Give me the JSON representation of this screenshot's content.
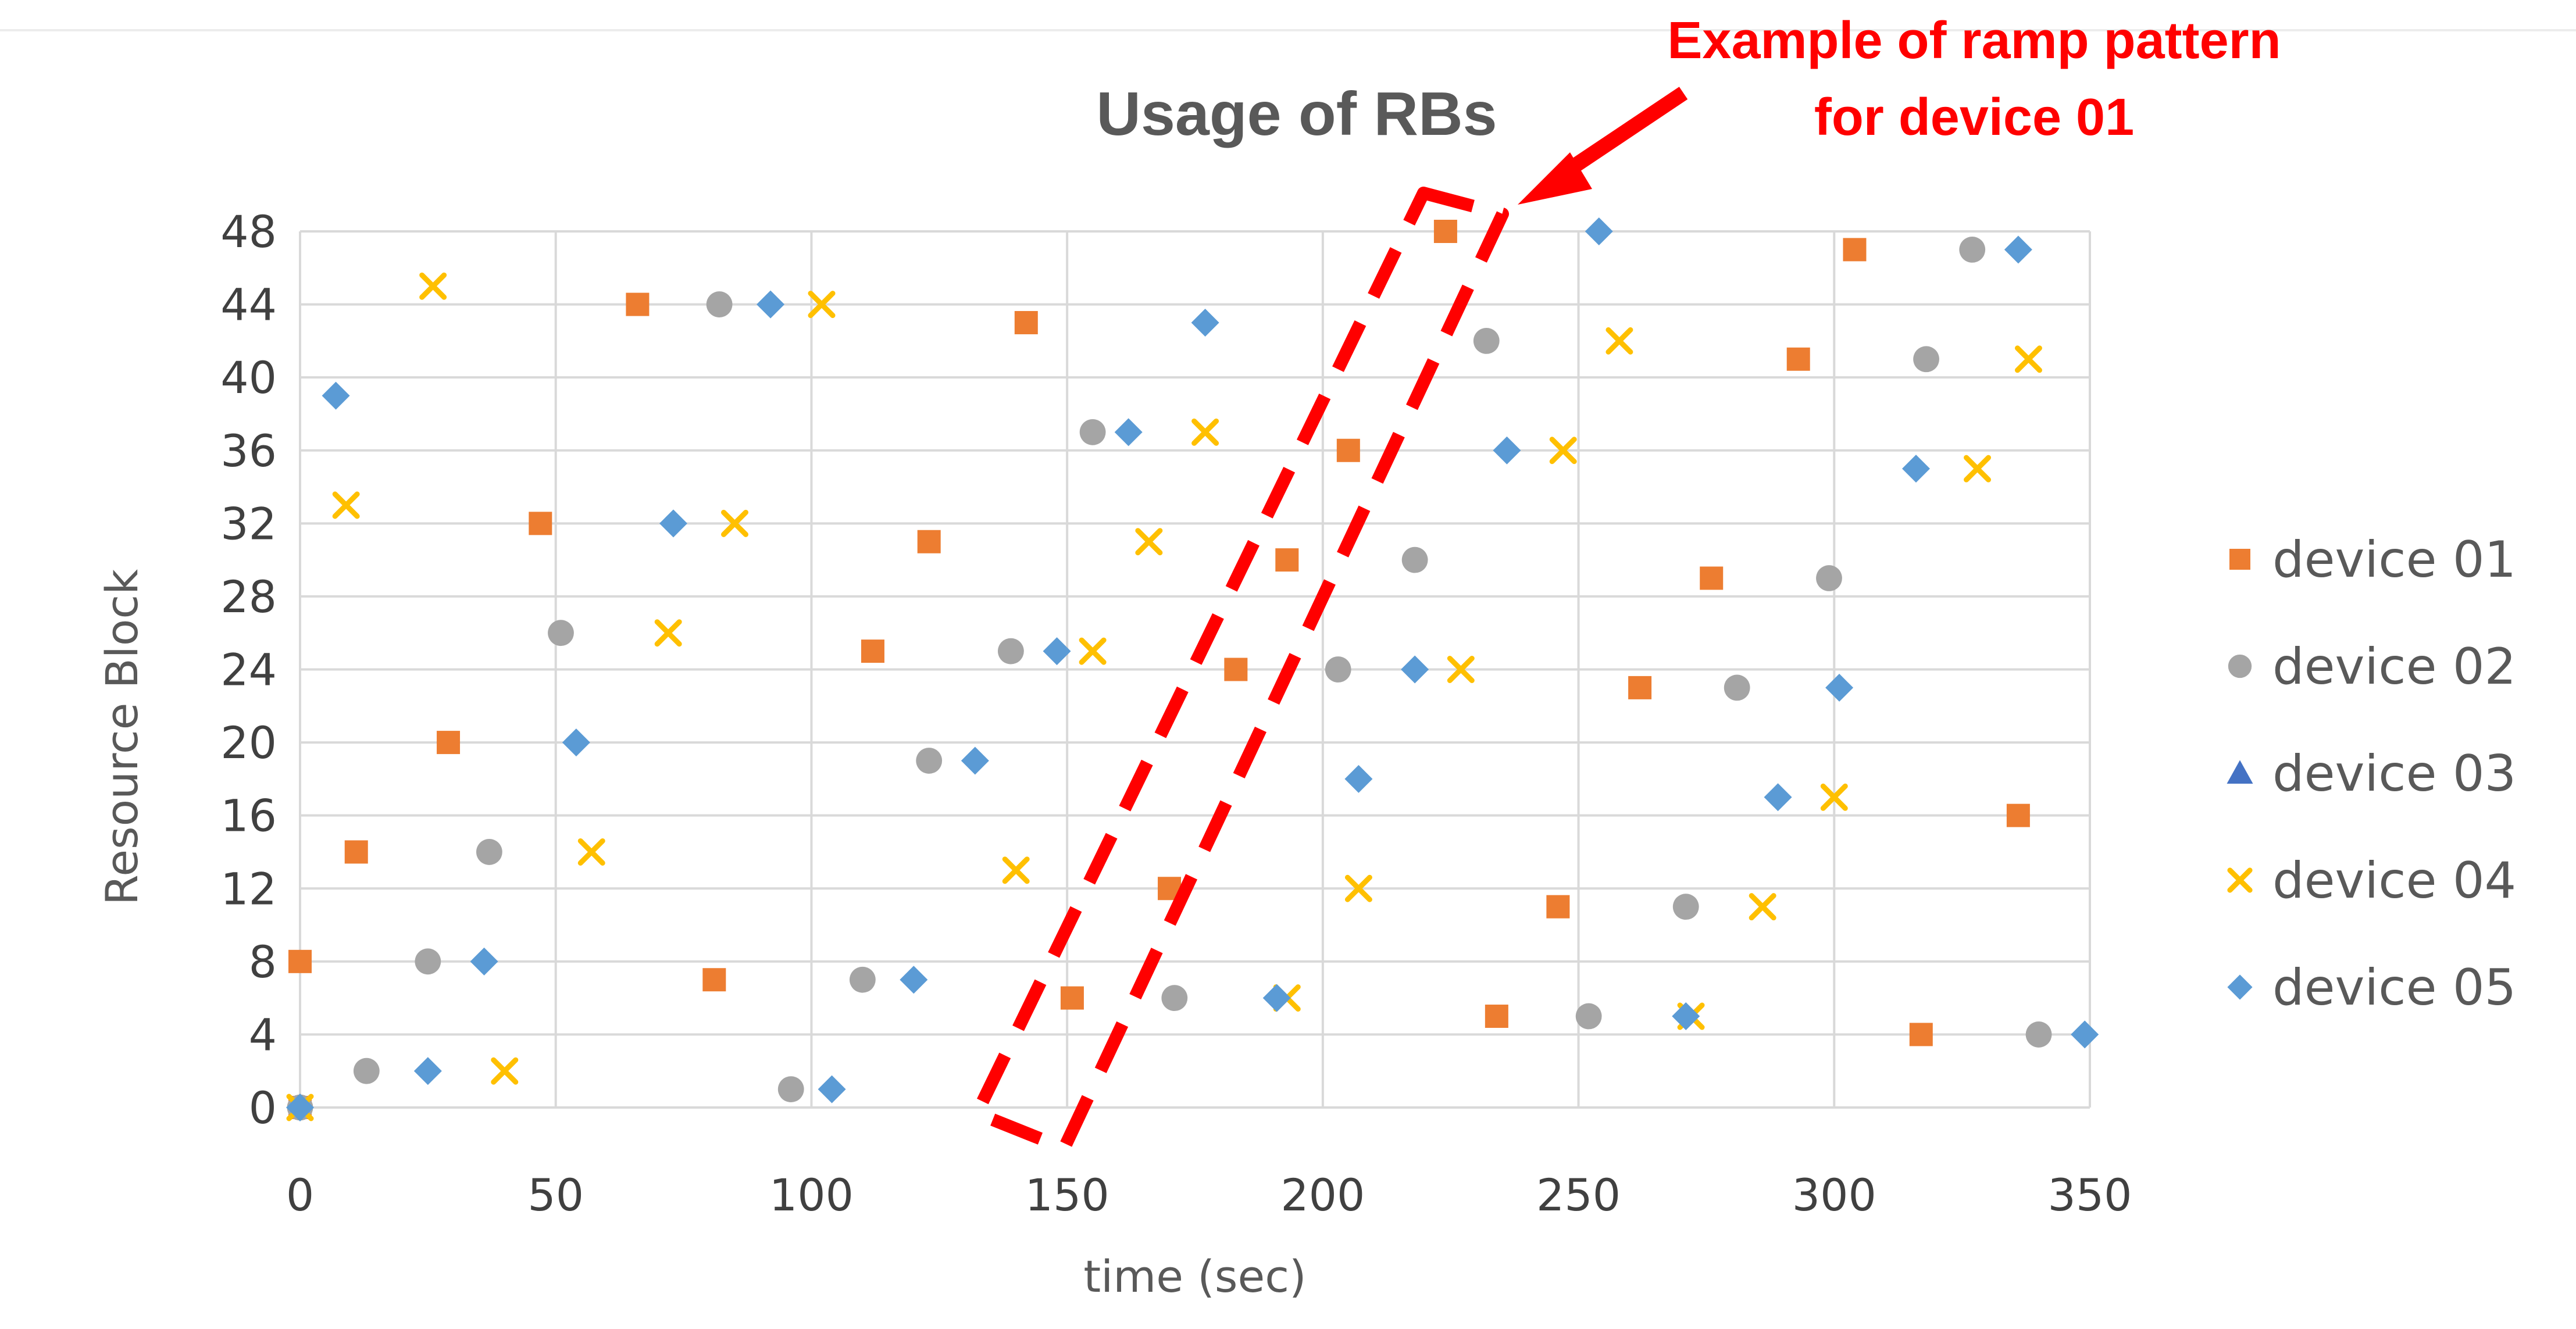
{
  "chart_data": {
    "type": "scatter",
    "title": "Usage of RBs",
    "xlabel": "time (sec)",
    "ylabel": "Resource Block",
    "xlim": [
      0,
      350
    ],
    "ylim": [
      0,
      48
    ],
    "x_ticks": [
      0,
      50,
      100,
      150,
      200,
      250,
      300,
      350
    ],
    "y_ticks": [
      0,
      4,
      8,
      12,
      16,
      20,
      24,
      28,
      32,
      36,
      40,
      44,
      48
    ],
    "grid": true,
    "legend_position": "right",
    "series": [
      {
        "name": "device 01",
        "marker": "square",
        "color": "#ed7d31",
        "points": [
          [
            0,
            0
          ],
          [
            0,
            8
          ],
          [
            11,
            14
          ],
          [
            29,
            20
          ],
          [
            47,
            32
          ],
          [
            66,
            44
          ],
          [
            81,
            7
          ],
          [
            112,
            25
          ],
          [
            123,
            31
          ],
          [
            142,
            43
          ],
          [
            151,
            6
          ],
          [
            170,
            12
          ],
          [
            183,
            24
          ],
          [
            193,
            30
          ],
          [
            205,
            36
          ],
          [
            224,
            48
          ],
          [
            234,
            5
          ],
          [
            246,
            11
          ],
          [
            262,
            23
          ],
          [
            276,
            29
          ],
          [
            293,
            41
          ],
          [
            304,
            47
          ],
          [
            317,
            4
          ],
          [
            336,
            16
          ]
        ]
      },
      {
        "name": "device 02",
        "marker": "circle",
        "color": "#a5a5a5",
        "points": [
          [
            0,
            0
          ],
          [
            13,
            2
          ],
          [
            25,
            8
          ],
          [
            37,
            14
          ],
          [
            51,
            26
          ],
          [
            82,
            44
          ],
          [
            96,
            1
          ],
          [
            110,
            7
          ],
          [
            123,
            19
          ],
          [
            139,
            25
          ],
          [
            155,
            37
          ],
          [
            171,
            6
          ],
          [
            203,
            24
          ],
          [
            218,
            30
          ],
          [
            232,
            42
          ],
          [
            252,
            5
          ],
          [
            271,
            11
          ],
          [
            281,
            23
          ],
          [
            299,
            29
          ],
          [
            318,
            41
          ],
          [
            327,
            47
          ],
          [
            340,
            4
          ]
        ]
      },
      {
        "name": "device 03",
        "marker": "triangle",
        "color": "#4472c4",
        "points": []
      },
      {
        "name": "device 04",
        "marker": "x",
        "color": "#ffc000",
        "points": [
          [
            0,
            0
          ],
          [
            9,
            33
          ],
          [
            26,
            45
          ],
          [
            40,
            2
          ],
          [
            57,
            14
          ],
          [
            72,
            26
          ],
          [
            85,
            32
          ],
          [
            102,
            44
          ],
          [
            140,
            13
          ],
          [
            155,
            25
          ],
          [
            166,
            31
          ],
          [
            177,
            37
          ],
          [
            193,
            6
          ],
          [
            207,
            12
          ],
          [
            227,
            24
          ],
          [
            247,
            36
          ],
          [
            258,
            42
          ],
          [
            272,
            5
          ],
          [
            286,
            11
          ],
          [
            300,
            17
          ],
          [
            328,
            35
          ],
          [
            338,
            41
          ]
        ]
      },
      {
        "name": "device 05",
        "marker": "diamond",
        "color": "#5b9bd5",
        "points": [
          [
            0,
            0
          ],
          [
            7,
            39
          ],
          [
            25,
            2
          ],
          [
            36,
            8
          ],
          [
            54,
            20
          ],
          [
            73,
            32
          ],
          [
            92,
            44
          ],
          [
            104,
            1
          ],
          [
            120,
            7
          ],
          [
            132,
            19
          ],
          [
            148,
            25
          ],
          [
            162,
            37
          ],
          [
            177,
            43
          ],
          [
            191,
            6
          ],
          [
            207,
            18
          ],
          [
            218,
            24
          ],
          [
            236,
            36
          ],
          [
            254,
            48
          ],
          [
            271,
            5
          ],
          [
            289,
            17
          ],
          [
            301,
            23
          ],
          [
            316,
            35
          ],
          [
            336,
            47
          ],
          [
            349,
            4
          ]
        ]
      }
    ],
    "annotation": {
      "text_lines": [
        "Example of ramp pattern",
        "for device 01"
      ],
      "color": "#ff0000"
    }
  }
}
